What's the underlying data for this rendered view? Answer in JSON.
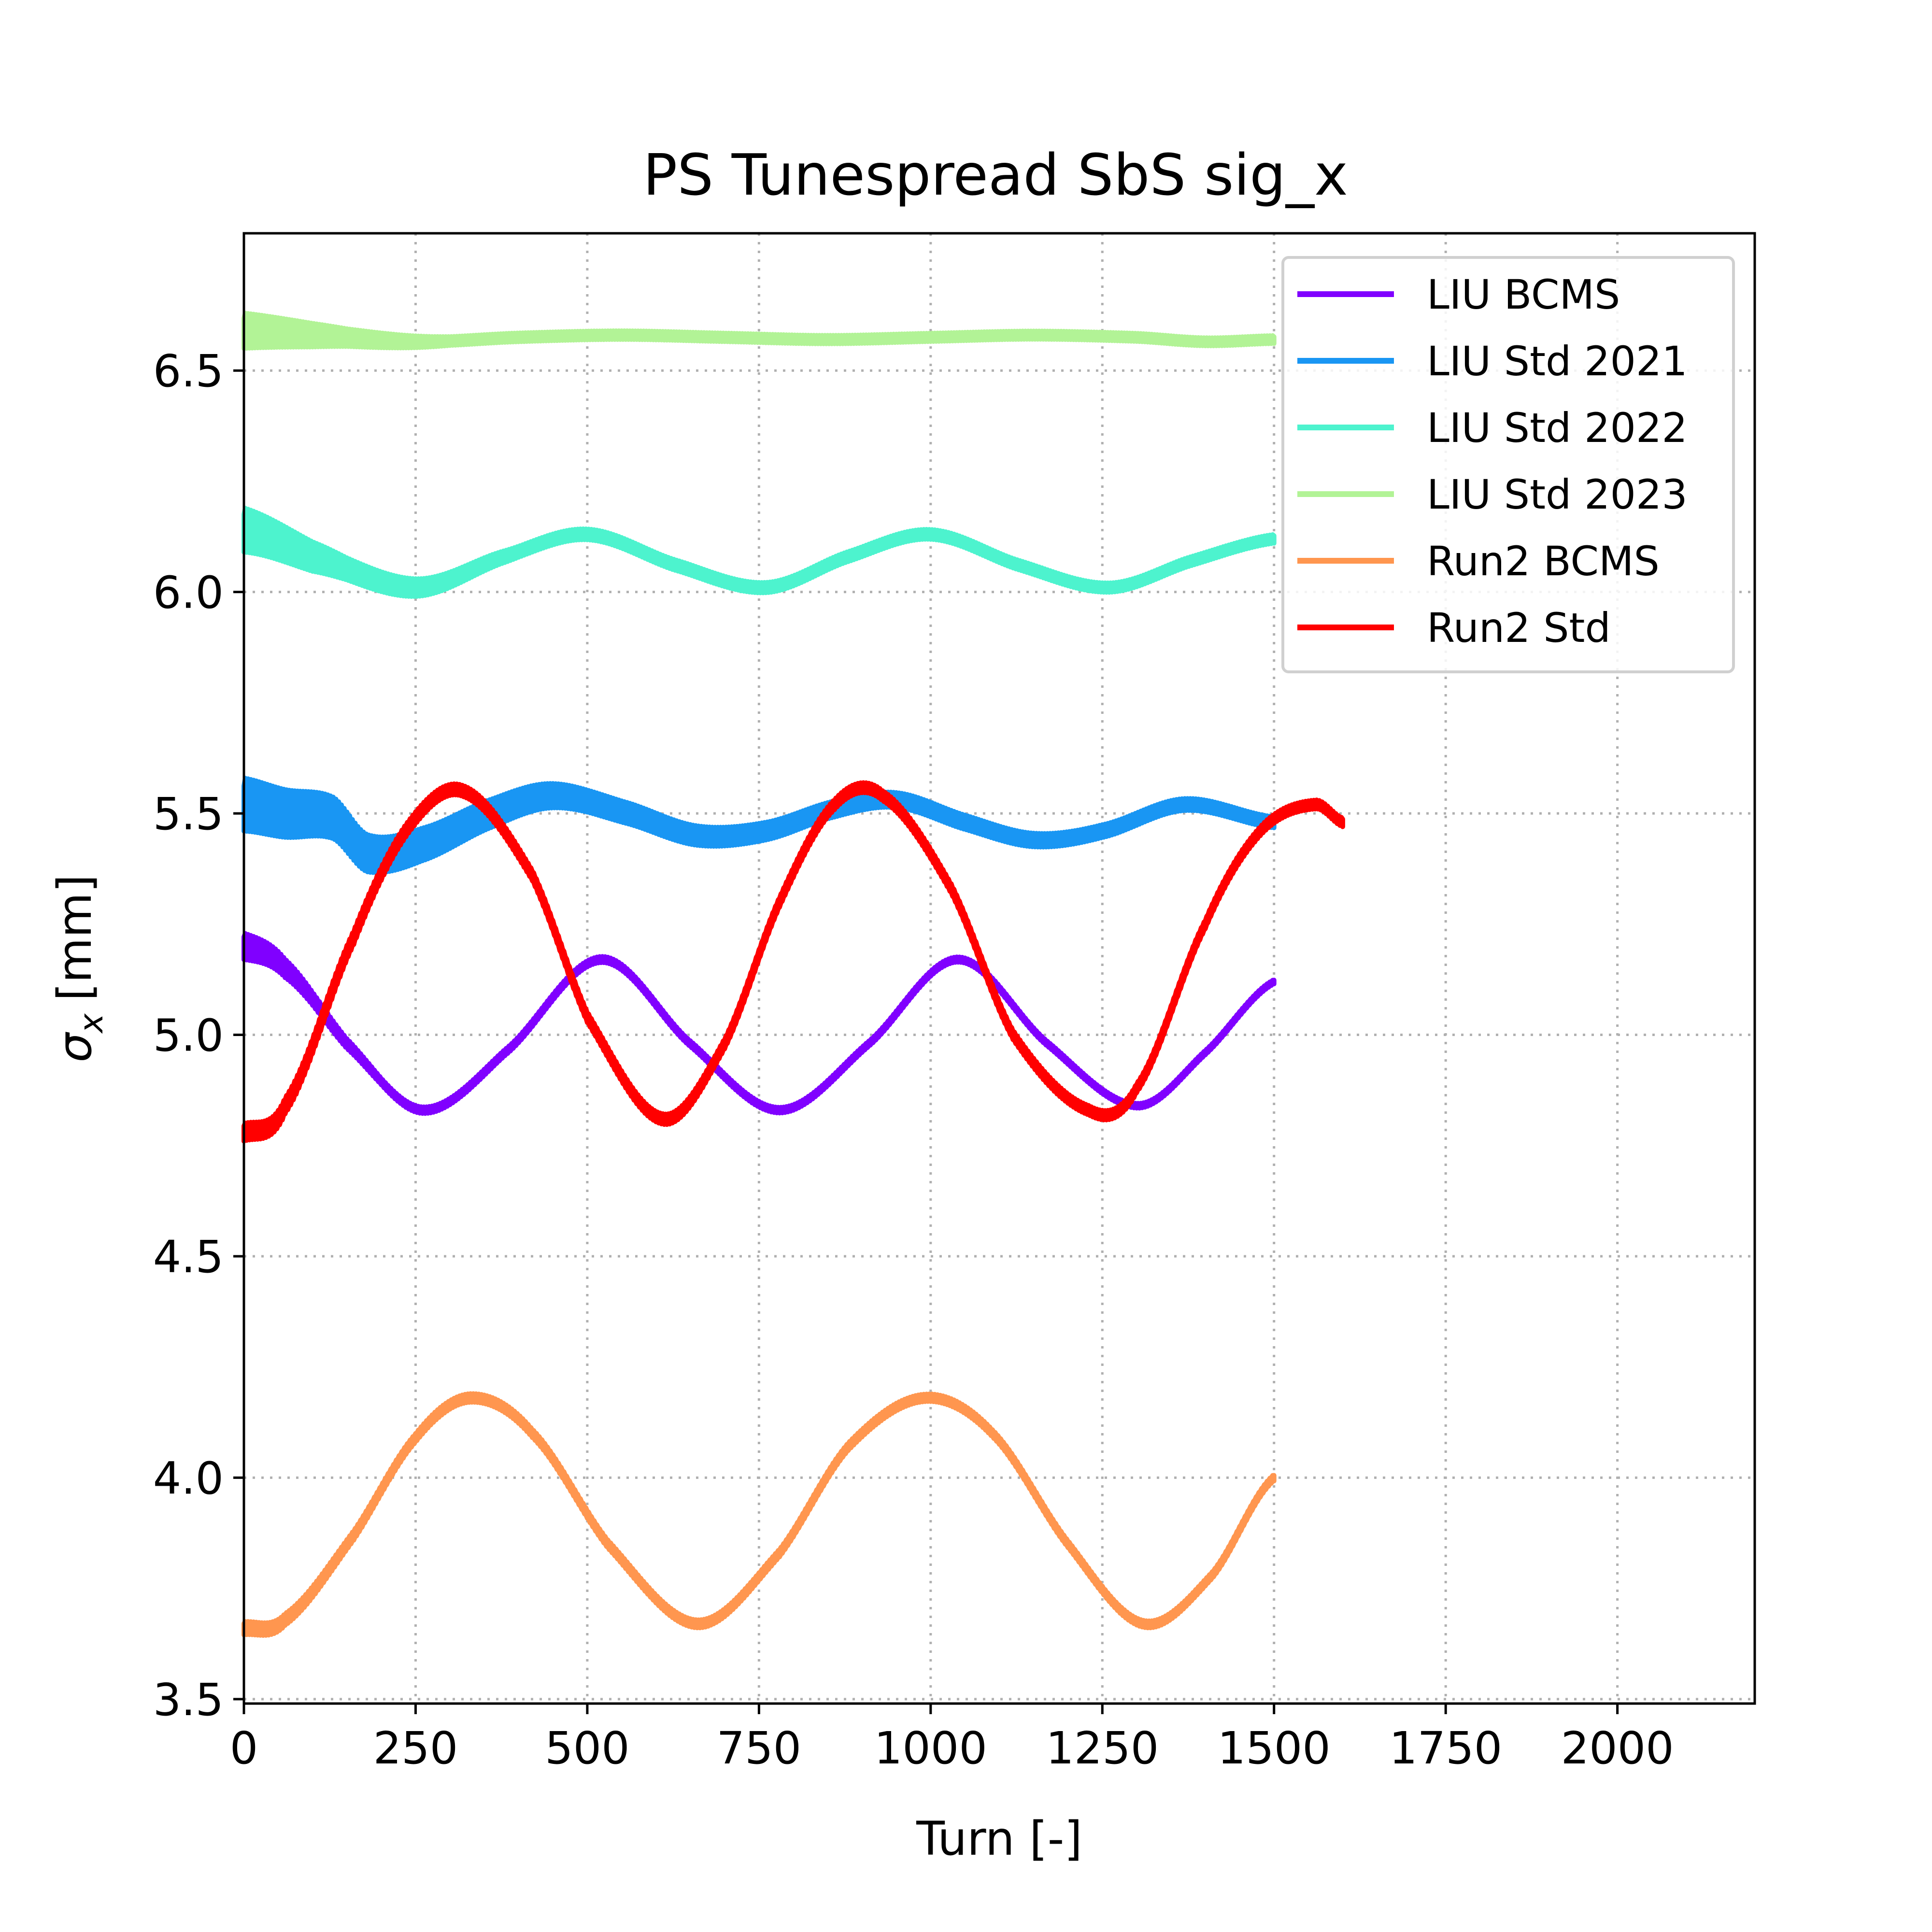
{
  "chart_data": {
    "type": "line",
    "title": "PS Tunespread SbS sig_x",
    "xlabel": "Turn [-]",
    "ylabel_symbol": "σ",
    "ylabel_subscript": "x",
    "ylabel_unit": "[mm]",
    "xlim": [
      0,
      2200
    ],
    "ylim": [
      3.49,
      6.81
    ],
    "xticks": [
      0,
      250,
      500,
      750,
      1000,
      1250,
      1500,
      1750,
      2000
    ],
    "yticks": [
      3.5,
      4.0,
      4.5,
      5.0,
      5.5,
      6.0,
      6.5
    ],
    "ytick_labels": [
      "3.5",
      "4.0",
      "4.5",
      "5.0",
      "5.5",
      "6.0",
      "6.5"
    ],
    "grid": true,
    "legend_position": "top-right",
    "series": [
      {
        "name": "LIU BCMS",
        "color": "#8000ff",
        "points": [
          [
            0,
            5.2
          ],
          [
            60,
            5.15
          ],
          [
            150,
            4.98
          ],
          [
            260,
            4.83
          ],
          [
            380,
            4.96
          ],
          [
            520,
            5.17
          ],
          [
            650,
            4.98
          ],
          [
            780,
            4.83
          ],
          [
            910,
            4.98
          ],
          [
            1040,
            5.17
          ],
          [
            1170,
            4.98
          ],
          [
            1300,
            4.84
          ],
          [
            1400,
            4.96
          ],
          [
            1500,
            5.12
          ]
        ],
        "band": [
          [
            0,
            0.06
          ],
          [
            100,
            0.03
          ],
          [
            200,
            0.015
          ],
          [
            1500,
            0.01
          ]
        ]
      },
      {
        "name": "LIU Std 2021",
        "color": "#1996f3",
        "points": [
          [
            0,
            5.52
          ],
          [
            60,
            5.5
          ],
          [
            130,
            5.49
          ],
          [
            180,
            5.41
          ],
          [
            260,
            5.43
          ],
          [
            360,
            5.5
          ],
          [
            450,
            5.54
          ],
          [
            560,
            5.5
          ],
          [
            660,
            5.45
          ],
          [
            760,
            5.46
          ],
          [
            860,
            5.51
          ],
          [
            950,
            5.53
          ],
          [
            1050,
            5.48
          ],
          [
            1150,
            5.44
          ],
          [
            1250,
            5.46
          ],
          [
            1370,
            5.52
          ],
          [
            1500,
            5.48
          ]
        ],
        "band": [
          [
            0,
            0.12
          ],
          [
            200,
            0.08
          ],
          [
            500,
            0.05
          ],
          [
            900,
            0.035
          ],
          [
            1500,
            0.025
          ]
        ]
      },
      {
        "name": "LIU Std 2022",
        "color": "#4df3ce",
        "points": [
          [
            0,
            6.14
          ],
          [
            100,
            6.08
          ],
          [
            250,
            6.01
          ],
          [
            380,
            6.08
          ],
          [
            500,
            6.13
          ],
          [
            630,
            6.06
          ],
          [
            760,
            6.01
          ],
          [
            880,
            6.08
          ],
          [
            1000,
            6.13
          ],
          [
            1130,
            6.06
          ],
          [
            1260,
            6.01
          ],
          [
            1380,
            6.07
          ],
          [
            1500,
            6.12
          ]
        ],
        "band": [
          [
            0,
            0.1
          ],
          [
            150,
            0.05
          ],
          [
            400,
            0.025
          ],
          [
            1500,
            0.02
          ]
        ]
      },
      {
        "name": "LIU Std 2023",
        "color": "#b2f396",
        "points": [
          [
            0,
            6.59
          ],
          [
            100,
            6.58
          ],
          [
            250,
            6.565
          ],
          [
            400,
            6.575
          ],
          [
            550,
            6.58
          ],
          [
            700,
            6.575
          ],
          [
            850,
            6.57
          ],
          [
            1000,
            6.575
          ],
          [
            1150,
            6.58
          ],
          [
            1300,
            6.575
          ],
          [
            1400,
            6.565
          ],
          [
            1500,
            6.57
          ]
        ],
        "band": [
          [
            0,
            0.08
          ],
          [
            150,
            0.04
          ],
          [
            300,
            0.02
          ],
          [
            1500,
            0.018
          ]
        ]
      },
      {
        "name": "Run2 BCMS",
        "color": "#ff964f",
        "points": [
          [
            0,
            3.66
          ],
          [
            60,
            3.68
          ],
          [
            160,
            3.87
          ],
          [
            250,
            4.09
          ],
          [
            330,
            4.18
          ],
          [
            420,
            4.1
          ],
          [
            530,
            3.85
          ],
          [
            660,
            3.67
          ],
          [
            780,
            3.83
          ],
          [
            880,
            4.07
          ],
          [
            990,
            4.18
          ],
          [
            1090,
            4.1
          ],
          [
            1200,
            3.85
          ],
          [
            1310,
            3.67
          ],
          [
            1410,
            3.78
          ],
          [
            1500,
            4.0
          ]
        ],
        "band": [
          [
            0,
            0.03
          ],
          [
            200,
            0.02
          ],
          [
            1500,
            0.015
          ]
        ]
      },
      {
        "name": "Run2 Std",
        "color": "#ff0000",
        "points": [
          [
            0,
            4.78
          ],
          [
            60,
            4.84
          ],
          [
            160,
            5.22
          ],
          [
            240,
            5.47
          ],
          [
            320,
            5.55
          ],
          [
            420,
            5.36
          ],
          [
            500,
            5.04
          ],
          [
            610,
            4.81
          ],
          [
            700,
            4.98
          ],
          [
            780,
            5.3
          ],
          [
            860,
            5.52
          ],
          [
            930,
            5.54
          ],
          [
            1030,
            5.33
          ],
          [
            1120,
            5.0
          ],
          [
            1230,
            4.83
          ],
          [
            1300,
            4.88
          ],
          [
            1400,
            5.25
          ],
          [
            1480,
            5.46
          ],
          [
            1560,
            5.52
          ],
          [
            1600,
            5.48
          ]
        ],
        "band": [
          [
            0,
            0.04
          ],
          [
            300,
            0.025
          ],
          [
            1600,
            0.02
          ]
        ]
      }
    ]
  }
}
